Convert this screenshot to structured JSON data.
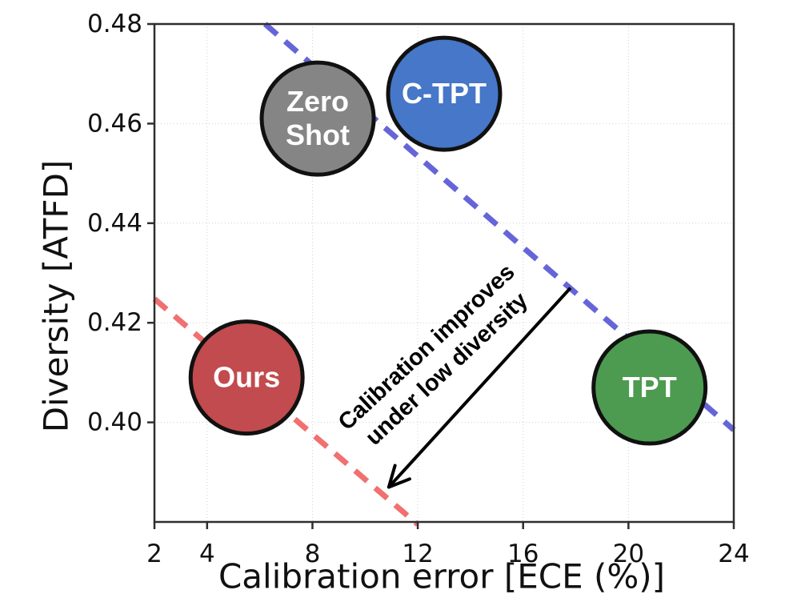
{
  "chart_data": {
    "type": "scatter",
    "title": "",
    "xlabel": "Calibration error [ECE (%)]",
    "ylabel": "Diversity [ATFD]",
    "xlim": [
      2,
      24
    ],
    "ylim": [
      0.38,
      0.48
    ],
    "grid": true,
    "legend_position": "none (labels drawn inside bubbles)",
    "xticks": [
      {
        "v": 2,
        "label": "2"
      },
      {
        "v": 4,
        "label": "4"
      },
      {
        "v": 8,
        "label": "8"
      },
      {
        "v": 12,
        "label": "12"
      },
      {
        "v": 16,
        "label": "16"
      },
      {
        "v": 20,
        "label": "20"
      },
      {
        "v": 24,
        "label": "24"
      }
    ],
    "yticks": [
      {
        "v": 0.4,
        "label": "0.40"
      },
      {
        "v": 0.42,
        "label": "0.42"
      },
      {
        "v": 0.44,
        "label": "0.44"
      },
      {
        "v": 0.46,
        "label": "0.46"
      },
      {
        "v": 0.48,
        "label": "0.48"
      }
    ],
    "points": [
      {
        "name": "zero-shot",
        "label": "Zero Shot",
        "label_lines": [
          "Zero",
          "Shot"
        ],
        "x": 8.2,
        "y": 0.461,
        "color": "#858585"
      },
      {
        "name": "c-tpt",
        "label": "C-TPT",
        "label_lines": [
          "C-TPT"
        ],
        "x": 13.0,
        "y": 0.466,
        "color": "#4677C8"
      },
      {
        "name": "ours",
        "label": "Ours",
        "label_lines": [
          "Ours"
        ],
        "x": 5.5,
        "y": 0.409,
        "color": "#C14B4E"
      },
      {
        "name": "tpt",
        "label": "TPT",
        "label_lines": [
          "TPT"
        ],
        "x": 20.8,
        "y": 0.407,
        "color": "#4D9B50"
      }
    ],
    "marker": {
      "radius_px": 70,
      "edge_color": "#111111",
      "edge_width": 5
    },
    "trend_lines": [
      {
        "name": "high-diversity-trend",
        "color": "#6565D9",
        "x1": 6.2,
        "y1": 0.48,
        "x2": 24.0,
        "y2": 0.3985
      },
      {
        "name": "low-diversity-trend",
        "color": "#F17070",
        "x1": 2.0,
        "y1": 0.4248,
        "x2": 12.0,
        "y2": 0.3795
      }
    ],
    "annotation": {
      "text_lines": [
        "Calibration improves",
        "under low diversity"
      ],
      "angle_deg": -43,
      "center": [
        12.7,
        0.413
      ],
      "arrow_from": [
        17.8,
        0.427
      ],
      "arrow_to": [
        10.9,
        0.387
      ],
      "color": "#000000"
    },
    "style": {
      "background": "#ffffff",
      "grid_color": "#cfcfcf",
      "spine_color": "#2e2e2e"
    }
  }
}
